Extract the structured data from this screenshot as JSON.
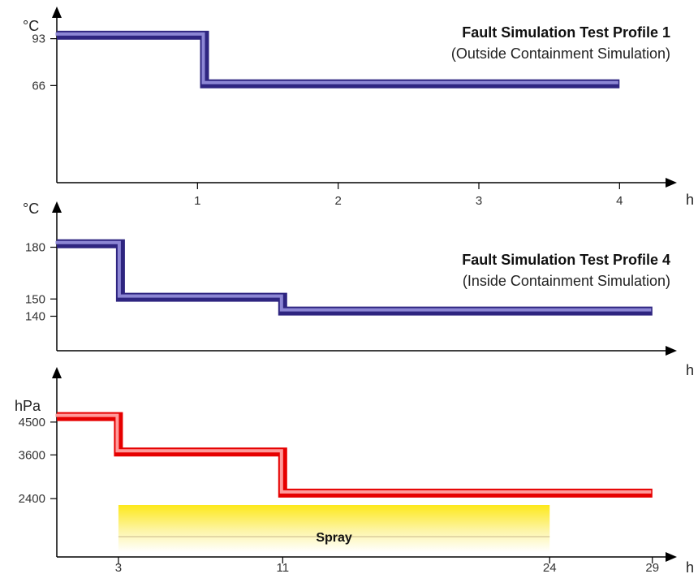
{
  "chart_data": [
    {
      "type": "line",
      "title": "Fault Simulation Test Profile 1",
      "subtitle": "(Outside Containment Simulation)",
      "ylabel": "°C",
      "xlabel": "h",
      "x_ticks": [
        1,
        2,
        3,
        4
      ],
      "y_ticks": [
        93,
        66
      ],
      "xlim": [
        0,
        4.35
      ],
      "ylim": [
        10,
        105
      ],
      "color": "#2e2580",
      "series": [
        {
          "values": [
            [
              0,
              95
            ],
            [
              1.05,
              95
            ],
            [
              1.05,
              67
            ],
            [
              4,
              67
            ]
          ]
        }
      ]
    },
    {
      "type": "line",
      "title": "Fault Simulation Test Profile 4",
      "subtitle": "(Inside Containment Simulation)",
      "ylabel": "°C",
      "xlabel": "h",
      "y_ticks": [
        180,
        150,
        140
      ],
      "ylim": [
        120,
        200
      ],
      "xlim": [
        0,
        29.8
      ],
      "color": "#2e2580",
      "series": [
        {
          "values": [
            [
              0,
              182
            ],
            [
              3.1,
              182
            ],
            [
              3.1,
              151
            ],
            [
              11,
              151
            ],
            [
              11,
              143
            ],
            [
              29,
              143
            ]
          ]
        }
      ]
    },
    {
      "type": "line",
      "ylabel": "hPa",
      "xlabel": "h",
      "x_ticks": [
        3,
        11,
        24,
        29
      ],
      "y_ticks": [
        4500,
        3600,
        2400
      ],
      "ylim": [
        800,
        5700
      ],
      "xlim": [
        0,
        29.8
      ],
      "color": "#e60000",
      "series": [
        {
          "values": [
            [
              0,
              4650
            ],
            [
              3,
              4650
            ],
            [
              3,
              3680
            ],
            [
              11,
              3680
            ],
            [
              11,
              2550
            ],
            [
              29,
              2550
            ]
          ]
        }
      ],
      "band": {
        "label": "Spray",
        "x_range": [
          3,
          24
        ],
        "color": "#fde81a"
      }
    }
  ]
}
